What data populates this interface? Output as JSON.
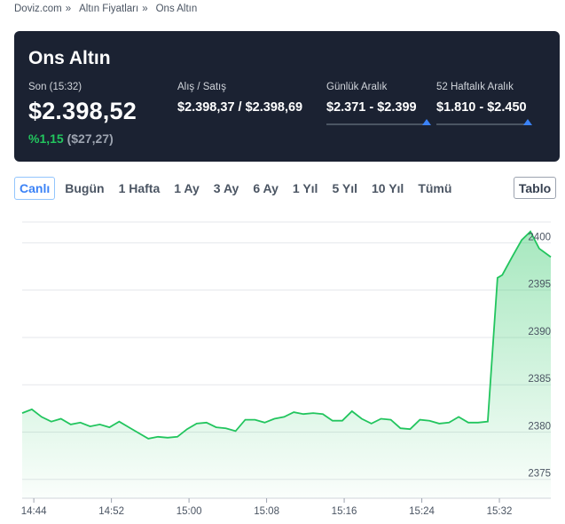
{
  "breadcrumb": {
    "items": [
      "Doviz.com",
      "Altın Fiyatları",
      "Ons Altın"
    ],
    "separator": "»"
  },
  "header": {
    "title": "Ons Altın",
    "last": {
      "label": "Son (15:32)",
      "value": "$2.398,52"
    },
    "change": {
      "percent": "%1,15",
      "absolute": "($27,27)"
    },
    "bid_ask": {
      "label": "Alış / Satış",
      "value": "$2.398,37 / $2.398,69"
    },
    "daily_range": {
      "label": "Günlük Aralık",
      "value": "$2.371 - $2.399",
      "position": 0.97
    },
    "week52_range": {
      "label": "52 Haftalık Aralık",
      "value": "$1.810 - $2.450",
      "position": 0.97
    }
  },
  "periods": {
    "tabs": [
      "Canlı",
      "Bugün",
      "1 Hafta",
      "1 Ay",
      "3 Ay",
      "6 Ay",
      "1 Yıl",
      "5 Yıl",
      "10 Yıl",
      "Tümü"
    ],
    "active_index": 0,
    "table_button": "Tablo"
  },
  "colors": {
    "accent": "#3b82f6",
    "positive": "#22c55e",
    "card_bg": "#1b2232",
    "line": "#22c55e"
  },
  "chart_data": {
    "type": "area",
    "x_ticks": [
      "14:44",
      "14:52",
      "15:00",
      "15:08",
      "15:16",
      "15:24",
      "15:32"
    ],
    "y_ticks": [
      2375,
      2380,
      2385,
      2390,
      2395,
      2400
    ],
    "ylim": [
      2373,
      2402.2
    ],
    "xlim_minutes": [
      0,
      54.5
    ],
    "grid": true,
    "series": [
      {
        "x": [
          0,
          1,
          2,
          3,
          4,
          5,
          6,
          7,
          8,
          9,
          10,
          11,
          12,
          13,
          14,
          15,
          16,
          17,
          18,
          19,
          20,
          21,
          22,
          23,
          24,
          25,
          26,
          27,
          28,
          29,
          30,
          31,
          32,
          33,
          34,
          35,
          36,
          37,
          38,
          39,
          40,
          41,
          42,
          43,
          44,
          45,
          46,
          47,
          48,
          49,
          49.5,
          50.5,
          51.5,
          52.4,
          53.3,
          54.5
        ],
        "y": [
          2382.0,
          2382.4,
          2381.6,
          2381.1,
          2381.4,
          2380.8,
          2381.0,
          2380.6,
          2380.8,
          2380.5,
          2381.1,
          2380.5,
          2379.9,
          2379.3,
          2379.5,
          2379.4,
          2379.5,
          2380.3,
          2380.9,
          2381.0,
          2380.5,
          2380.4,
          2380.1,
          2381.3,
          2381.3,
          2381.0,
          2381.4,
          2381.6,
          2382.1,
          2381.9,
          2382.0,
          2381.9,
          2381.2,
          2381.2,
          2382.2,
          2381.4,
          2380.9,
          2381.4,
          2381.3,
          2380.4,
          2380.3,
          2381.3,
          2381.2,
          2380.9,
          2381.0,
          2381.6,
          2381.0,
          2381.0,
          2381.1,
          2396.3,
          2396.6,
          2398.5,
          2400.3,
          2401.2,
          2399.4,
          2398.5
        ]
      }
    ]
  }
}
